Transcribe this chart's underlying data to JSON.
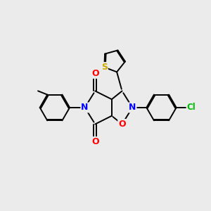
{
  "bg_color": "#ebebeb",
  "figsize": [
    3.0,
    3.0
  ],
  "dpi": 100,
  "atom_colors": {
    "N": "#0000ff",
    "O": "#ff0000",
    "S": "#ccaa00",
    "Cl": "#00bb00",
    "C": "#000000"
  },
  "bond_color": "#000000",
  "bond_width": 1.4
}
